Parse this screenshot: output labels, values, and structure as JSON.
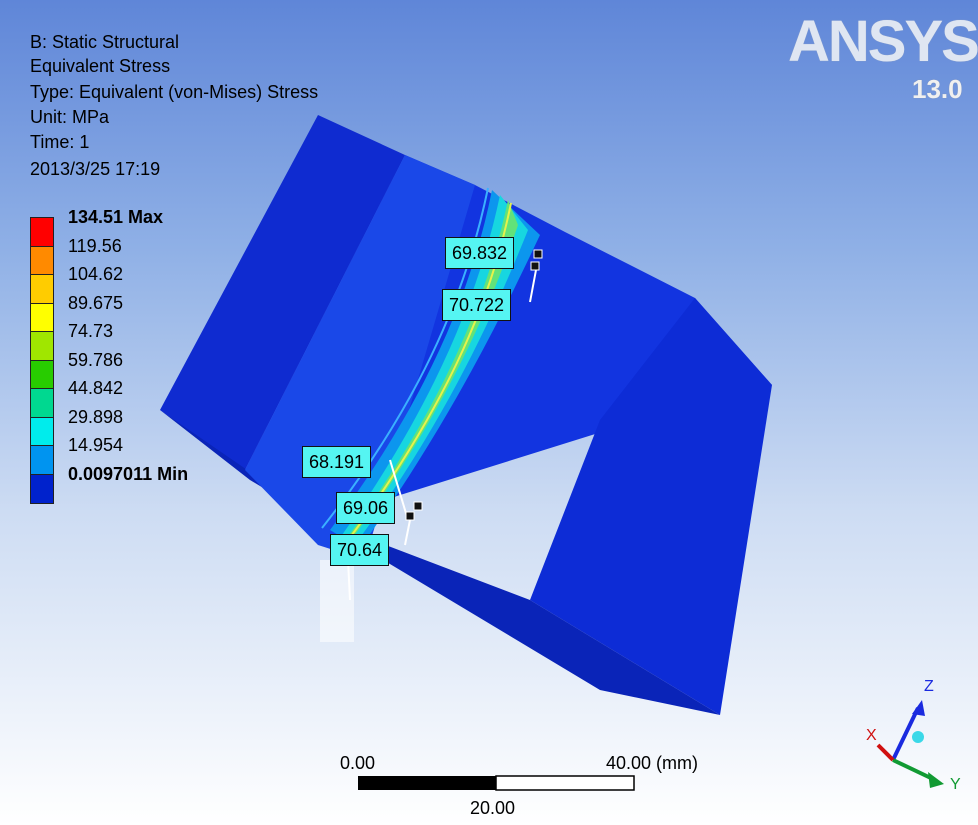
{
  "result": {
    "analysis": "B: Static Structural",
    "name": "Equivalent Stress",
    "type": "Type: Equivalent (von-Mises) Stress",
    "unit": "Unit: MPa",
    "time": "Time: 1",
    "date": "2013/3/25 17:19"
  },
  "legend": {
    "levels": [
      {
        "label": "134.51 Max",
        "color": "#ff0000"
      },
      {
        "label": "119.56",
        "color": "#ff8a00"
      },
      {
        "label": "104.62",
        "color": "#ffcc00"
      },
      {
        "label": "89.675",
        "color": "#ffff00"
      },
      {
        "label": "74.73",
        "color": "#a0e600"
      },
      {
        "label": "59.786",
        "color": "#28cc00"
      },
      {
        "label": "44.842",
        "color": "#00d890"
      },
      {
        "label": "29.898",
        "color": "#00ecec"
      },
      {
        "label": "14.954",
        "color": "#0094f0"
      },
      {
        "label": "0.0097011 Min",
        "color": "#0022cc"
      }
    ]
  },
  "brand": {
    "name": "ANSYS",
    "version": "13.0"
  },
  "probes": [
    "69.832",
    "70.722",
    "68.191",
    "69.06",
    "70.64"
  ],
  "scale_bar": {
    "start": "0.00",
    "end": "40.00 (mm)",
    "mid": "20.00"
  },
  "triad": {
    "z": "Z",
    "x": "X",
    "y": "Y"
  }
}
